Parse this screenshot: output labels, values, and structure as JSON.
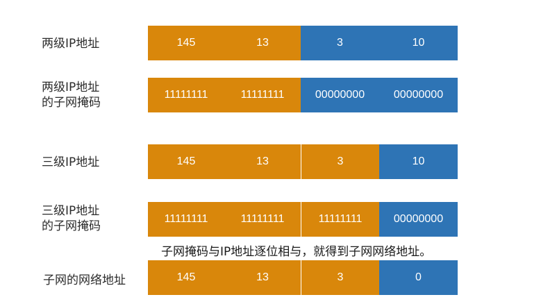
{
  "rows": [
    {
      "label": "两级IP地址",
      "segments": [
        "145",
        "13",
        "3",
        "10"
      ]
    },
    {
      "label": "两级IP地址\n的子网掩码",
      "segments": [
        "11111111",
        "11111111",
        "00000000",
        "00000000"
      ]
    },
    {
      "label": "三级IP地址",
      "segments": [
        "145",
        "13",
        "3",
        "10"
      ]
    },
    {
      "label": "三级IP地址\n的子网掩码",
      "segments": [
        "11111111",
        "11111111",
        "11111111",
        "00000000"
      ]
    },
    {
      "label": "子网的网络地址",
      "segments": [
        "145",
        "13",
        "3",
        "0"
      ]
    }
  ],
  "note": "子网掩码与IP地址逐位相与，就得到子网网络地址。",
  "colors": {
    "network": "#d9870b",
    "host": "#2e74b5"
  }
}
